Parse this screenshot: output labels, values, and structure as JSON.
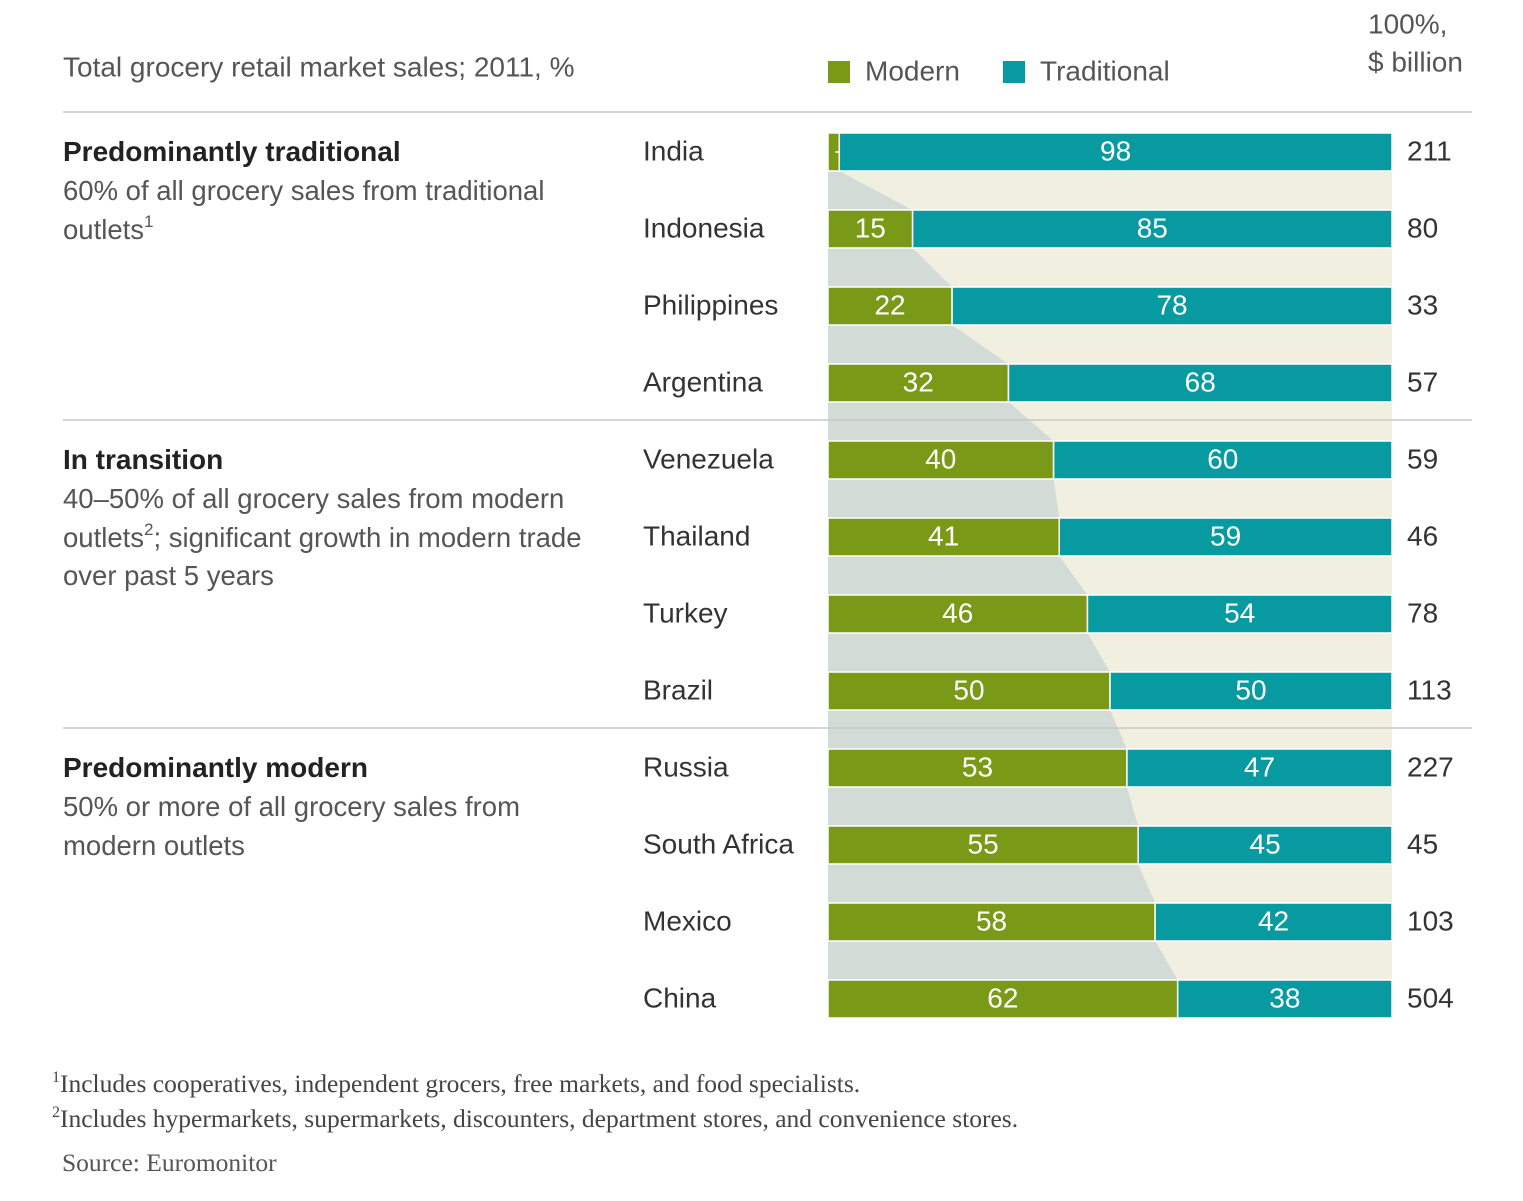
{
  "chart_data": {
    "type": "bar",
    "orientation": "horizontal",
    "stacked": true,
    "title": "Total grocery retail market sales; 2011, %",
    "xlim": [
      0,
      100
    ],
    "series": [
      {
        "name": "Modern",
        "color": "#7a9a17",
        "values": [
          [
            2,
            15,
            22,
            32
          ],
          [
            40,
            41,
            46,
            50
          ],
          [
            53,
            55,
            58,
            62
          ]
        ]
      },
      {
        "name": "Traditional",
        "color": "#079ba1",
        "values": [
          [
            98,
            85,
            78,
            68
          ],
          [
            60,
            59,
            54,
            50
          ],
          [
            47,
            45,
            42,
            38
          ]
        ]
      }
    ],
    "groups": [
      {
        "title": "Predominantly traditional",
        "description": {
          "before": "60% of all grocery sales from traditional outlets",
          "sup": "1"
        },
        "categories": [
          "India",
          "Indonesia",
          "Philippines",
          "Argentina"
        ]
      },
      {
        "title": "In transition",
        "description": {
          "before": "40–50% of all grocery sales from modern outlets",
          "sup": "2",
          "after": "; significant growth in modern trade over past 5 years"
        },
        "categories": [
          "Venezuela",
          "Thailand",
          "Turkey",
          "Brazil"
        ]
      },
      {
        "title": "Predominantly modern",
        "description": {
          "before": "50% or more of all grocery sales from modern outlets"
        },
        "categories": [
          "Russia",
          "South Africa",
          "Mexico",
          "China"
        ]
      }
    ],
    "totals": {
      "header": [
        "100%,",
        "$ billion"
      ],
      "values": [
        [
          211,
          80,
          33,
          57
        ],
        [
          59,
          46,
          78,
          113
        ],
        [
          227,
          45,
          103,
          504
        ]
      ]
    },
    "footnotes": [
      {
        "marker": "1",
        "text": "Includes cooperatives, independent grocers, free markets, and food specialists."
      },
      {
        "marker": "2",
        "text": "Includes hypermarkets, supermarkets, discounters, department stores, and convenience stores."
      }
    ],
    "source": "Source: Euromonitor"
  }
}
